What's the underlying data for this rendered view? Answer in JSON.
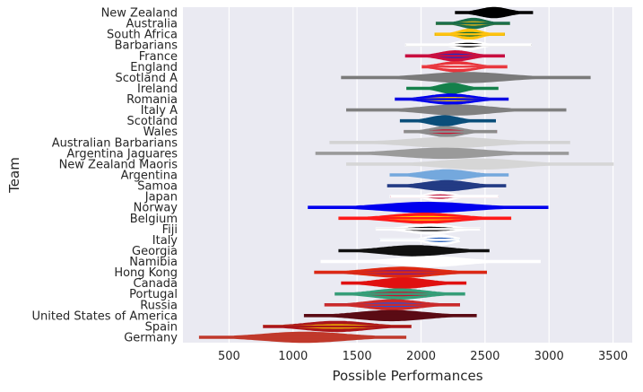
{
  "chart_data": {
    "type": "violin",
    "title": "",
    "xlabel": "Possible Performances",
    "ylabel": "Team",
    "xlim": [
      140,
      3650
    ],
    "xticks": [
      500,
      1000,
      1500,
      2000,
      2500,
      3000,
      3500
    ],
    "grid": true,
    "legend": "none",
    "series": [
      {
        "team": "New Zealand",
        "min": 2270,
        "max": 2870,
        "center": 2570,
        "spread": 110,
        "color": "#000000",
        "halo": null
      },
      {
        "team": "Australia",
        "min": 2120,
        "max": 2690,
        "center": 2410,
        "spread": 90,
        "color": "#1a6e4a",
        "halo": "#e2b41c"
      },
      {
        "team": "South Africa",
        "min": 2110,
        "max": 2650,
        "center": 2380,
        "spread": 85,
        "color": "#ffc20e",
        "halo": "#0a6b36"
      },
      {
        "team": "Barbarians",
        "min": 1880,
        "max": 2860,
        "center": 2370,
        "spread": 90,
        "color": "#ffffff",
        "halo": "#000000"
      },
      {
        "team": "France",
        "min": 1880,
        "max": 2650,
        "center": 2270,
        "spread": 120,
        "color": "#cc0e3d",
        "halo": "#1f2bc2"
      },
      {
        "team": "England",
        "min": 2010,
        "max": 2670,
        "center": 2280,
        "spread": 130,
        "color": "#e8343b",
        "halo": "#ffffff"
      },
      {
        "team": "Scotland A",
        "min": 1380,
        "max": 3320,
        "center": 2350,
        "spread": 300,
        "color": "#7a7a7a",
        "halo": null
      },
      {
        "team": "Ireland",
        "min": 1890,
        "max": 2600,
        "center": 2240,
        "spread": 95,
        "color": "#14804a",
        "halo": null
      },
      {
        "team": "Romania",
        "min": 1800,
        "max": 2680,
        "center": 2230,
        "spread": 170,
        "color": "#0000ee",
        "halo": "#ffd400"
      },
      {
        "team": "Italy A",
        "min": 1420,
        "max": 3130,
        "center": 2280,
        "spread": 250,
        "color": "#808080",
        "halo": null
      },
      {
        "team": "Scotland",
        "min": 1840,
        "max": 2580,
        "center": 2180,
        "spread": 110,
        "color": "#0a4e7a",
        "halo": null
      },
      {
        "team": "Wales",
        "min": 1870,
        "max": 2590,
        "center": 2200,
        "spread": 120,
        "color": "#8c8c8c",
        "halo": "#c8102e"
      },
      {
        "team": "Australian Barbarians",
        "min": 1290,
        "max": 3160,
        "center": 2230,
        "spread": 320,
        "color": "#d3d3d3",
        "halo": null
      },
      {
        "team": "Argentina Jaguares",
        "min": 1180,
        "max": 3150,
        "center": 2170,
        "spread": 320,
        "color": "#9a9a9a",
        "halo": null
      },
      {
        "team": "New Zealand Maoris",
        "min": 1420,
        "max": 3500,
        "center": 2460,
        "spread": 300,
        "color": "#d6d6d6",
        "halo": null
      },
      {
        "team": "Argentina",
        "min": 1760,
        "max": 2680,
        "center": 2200,
        "spread": 170,
        "color": "#74a8dd",
        "halo": null
      },
      {
        "team": "Samoa",
        "min": 1740,
        "max": 2660,
        "center": 2200,
        "spread": 170,
        "color": "#233b84",
        "halo": null
      },
      {
        "team": "Japan",
        "min": 1760,
        "max": 2600,
        "center": 2150,
        "spread": 90,
        "color": "#ffffff",
        "halo": "#bc002d"
      },
      {
        "team": "Norway",
        "min": 1120,
        "max": 2990,
        "center": 2050,
        "spread": 330,
        "color": "#0000ee",
        "halo": null
      },
      {
        "team": "Belgium",
        "min": 1360,
        "max": 2700,
        "center": 2030,
        "spread": 250,
        "color": "#ff1a1a",
        "halo": "#ffd400"
      },
      {
        "team": "Fiji",
        "min": 1650,
        "max": 2460,
        "center": 2070,
        "spread": 160,
        "color": "#ffffff",
        "halo": "#000000"
      },
      {
        "team": "Italy",
        "min": 1680,
        "max": 2300,
        "center": 2150,
        "spread": 100,
        "color": "#ffffff",
        "halo": "#1a56b8"
      },
      {
        "team": "Georgia",
        "min": 1360,
        "max": 2530,
        "center": 1950,
        "spread": 240,
        "color": "#111111",
        "halo": null
      },
      {
        "team": "Namibia",
        "min": 1220,
        "max": 2930,
        "center": 2070,
        "spread": 250,
        "color": "#ffffff",
        "halo": null
      },
      {
        "team": "Hong Kong",
        "min": 1170,
        "max": 2510,
        "center": 1850,
        "spread": 250,
        "color": "#de2910",
        "halo": "#7a1a8a"
      },
      {
        "team": "Canada",
        "min": 1380,
        "max": 2350,
        "center": 1860,
        "spread": 190,
        "color": "#e01010",
        "halo": null
      },
      {
        "team": "Portugal",
        "min": 1330,
        "max": 2340,
        "center": 1830,
        "spread": 200,
        "color": "#34a07a",
        "halo": "#c8102e"
      },
      {
        "team": "Russia",
        "min": 1250,
        "max": 2300,
        "center": 1780,
        "spread": 200,
        "color": "#cc2a2a",
        "halo": "#2a4fd6"
      },
      {
        "team": "United States of America",
        "min": 1090,
        "max": 2430,
        "center": 1770,
        "spread": 260,
        "color": "#5a0b14",
        "halo": null
      },
      {
        "team": "Spain",
        "min": 770,
        "max": 1920,
        "center": 1340,
        "spread": 240,
        "color": "#aa151b",
        "halo": "#f1bf00"
      },
      {
        "team": "Germany",
        "min": 270,
        "max": 1880,
        "center": 1090,
        "spread": 310,
        "color": "#c0392b",
        "halo": null
      }
    ]
  }
}
